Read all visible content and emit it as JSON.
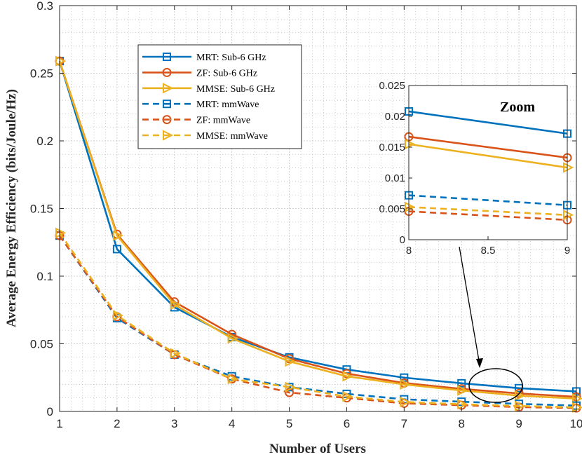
{
  "chart_data": {
    "type": "line",
    "title": "",
    "xlabel": "Number of Users",
    "ylabel": "Average Energy Efficiency (bits/Joule/Hz)",
    "x": [
      1,
      2,
      3,
      4,
      5,
      6,
      7,
      8,
      9,
      10
    ],
    "xlim": [
      1,
      10
    ],
    "ylim": [
      0,
      0.3
    ],
    "xticks": [
      "1",
      "2",
      "3",
      "4",
      "5",
      "6",
      "7",
      "8",
      "9",
      "10"
    ],
    "yticks": [
      "0",
      "0.05",
      "0.1",
      "0.15",
      "0.2",
      "0.25",
      "0.3"
    ],
    "grid": true,
    "legend_position": "top-left",
    "series": [
      {
        "name": "MRT: Sub-6 GHz",
        "color": "#0072BD",
        "style": "solid",
        "marker": "square",
        "values": [
          0.259,
          0.12,
          0.077,
          0.055,
          0.04,
          0.031,
          0.025,
          0.0208,
          0.0172,
          0.0148
        ]
      },
      {
        "name": "ZF: Sub-6 GHz",
        "color": "#D95319",
        "style": "solid",
        "marker": "circle",
        "values": [
          0.259,
          0.131,
          0.081,
          0.057,
          0.039,
          0.028,
          0.021,
          0.0167,
          0.0133,
          0.0108
        ]
      },
      {
        "name": "MMSE: Sub-6 GHz",
        "color": "#EDB120",
        "style": "solid",
        "marker": "triangle-right",
        "values": [
          0.259,
          0.13,
          0.079,
          0.054,
          0.037,
          0.026,
          0.02,
          0.0155,
          0.0117,
          0.0095
        ]
      },
      {
        "name": "MRT: mmWave",
        "color": "#0072BD",
        "style": "dashed",
        "marker": "square",
        "values": [
          0.13,
          0.069,
          0.042,
          0.026,
          0.018,
          0.013,
          0.009,
          0.0072,
          0.0056,
          0.0043
        ]
      },
      {
        "name": "ZF: mmWave",
        "color": "#D95319",
        "style": "dashed",
        "marker": "circle",
        "values": [
          0.13,
          0.07,
          0.042,
          0.024,
          0.014,
          0.01,
          0.006,
          0.0046,
          0.0032,
          0.0025
        ]
      },
      {
        "name": "MMSE: mmWave",
        "color": "#EDB120",
        "style": "dashed",
        "marker": "triangle-right",
        "values": [
          0.132,
          0.071,
          0.043,
          0.024,
          0.018,
          0.011,
          0.007,
          0.0053,
          0.004,
          0.003
        ]
      }
    ],
    "inset": {
      "label": "Zoom",
      "xlim": [
        8,
        9
      ],
      "ylim": [
        0,
        0.025
      ],
      "xticks": [
        "8",
        "8.5",
        "9"
      ],
      "yticks": [
        "0",
        "0.005",
        "0.01",
        "0.015",
        "0.02",
        "0.025"
      ]
    }
  }
}
